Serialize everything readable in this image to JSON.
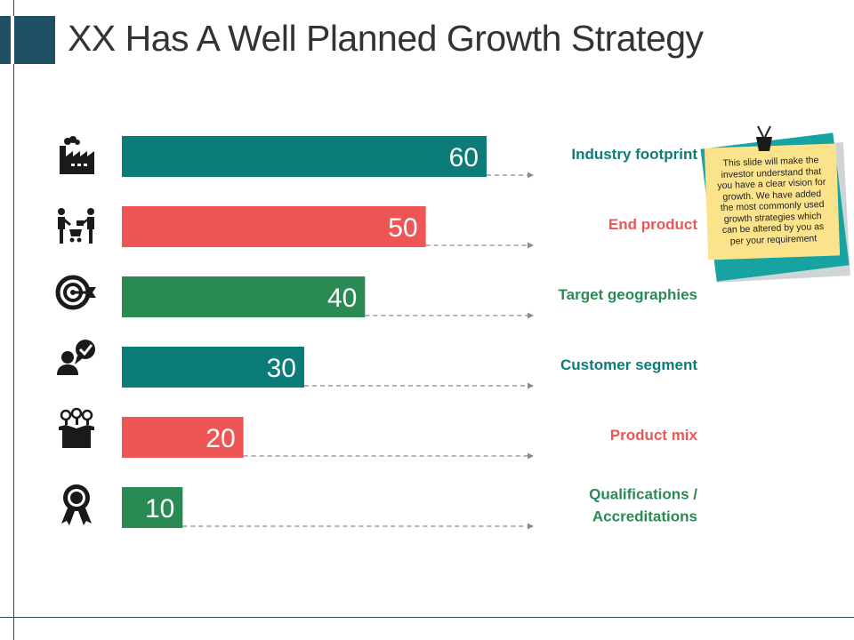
{
  "page": {
    "title": "XX Has A Well Planned Growth Strategy"
  },
  "colors": {
    "teal": "#0c7c78",
    "red": "#ee5656",
    "green": "#2a8a54",
    "dark": "#1e4f63",
    "note": "#fbe38b",
    "note_back": "#16a3a1"
  },
  "icons": [
    "factory-icon",
    "handshake-cart-icon",
    "target-icon",
    "customer-chat-icon",
    "product-box-icon",
    "award-ribbon-icon"
  ],
  "note": {
    "text": "This slide will make the investor understand that you have a clear vision for growth. We have added the most commonly used growth strategies which can be altered by you as per your requirement"
  },
  "chart_data": {
    "type": "bar",
    "orientation": "horizontal",
    "title": "XX Has A Well Planned Growth Strategy",
    "xlim": [
      0,
      60
    ],
    "categories": [
      "Industry footprint",
      "End product",
      "Target geographies",
      "Customer segment",
      "Product mix",
      "Qualifications / Accreditations"
    ],
    "label_lines": [
      [
        "Industry footprint"
      ],
      [
        "End product"
      ],
      [
        "Target geographies"
      ],
      [
        "Customer segment"
      ],
      [
        "Product mix"
      ],
      [
        "Qualifications /",
        "Accreditations"
      ]
    ],
    "values": [
      60,
      50,
      40,
      30,
      20,
      10
    ],
    "bar_colors": [
      "#0c7c78",
      "#ee5656",
      "#2a8a54",
      "#0c7c78",
      "#ee5656",
      "#2a8a54"
    ],
    "label_colors": [
      "#0c7c78",
      "#ee5656",
      "#2a8a54",
      "#0c7c78",
      "#ee5656",
      "#2a8a54"
    ]
  }
}
